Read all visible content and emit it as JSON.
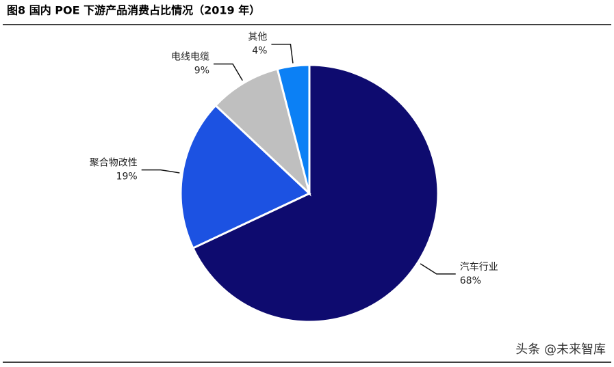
{
  "chart_data": {
    "type": "pie",
    "title": "图8  国内 POE 下游产品消费占比情况（2019 年）",
    "categories": [
      "汽车行业",
      "聚合物改性",
      "电线电缆",
      "其他"
    ],
    "values": [
      68,
      19,
      9,
      4
    ],
    "value_labels": [
      "68%",
      "19%",
      "9%",
      "4%"
    ],
    "colors": [
      "#0e0b6f",
      "#1c52e2",
      "#bfbfbf",
      "#0b80f5"
    ],
    "watermark": "头条 @未来智库"
  }
}
